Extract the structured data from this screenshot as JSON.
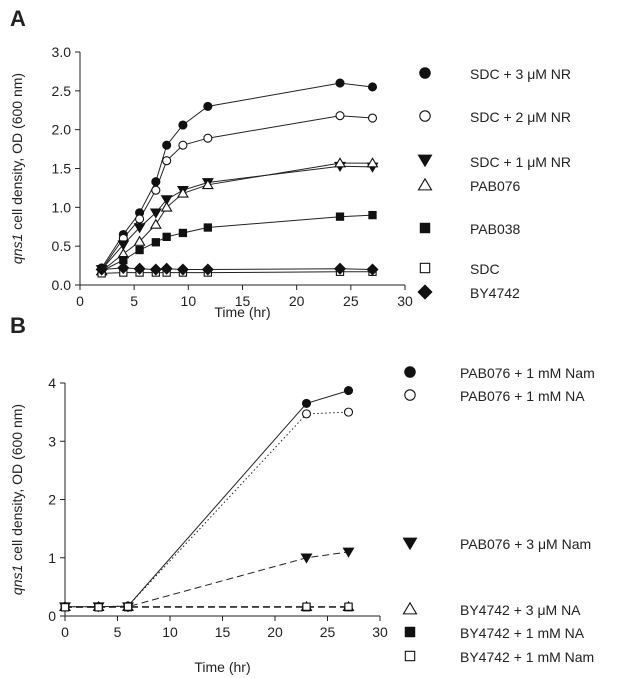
{
  "chart_data": [
    {
      "panel": "A",
      "type": "line",
      "xlabel": "Time (hr)",
      "ylabel_italic": "qns1",
      "ylabel_rest": " cell density, OD (600 nm)",
      "xlim": [
        0,
        30
      ],
      "ylim": [
        0,
        3.0
      ],
      "xticks": [
        0,
        5,
        10,
        15,
        20,
        25,
        30
      ],
      "yticks": [
        0.0,
        0.5,
        1.0,
        1.5,
        2.0,
        2.5,
        3.0
      ],
      "yticklabels": [
        "0.0",
        "0.5",
        "1.0",
        "1.5",
        "2.0",
        "2.5",
        "3.0"
      ],
      "grid": false,
      "legend_placement": "right",
      "series": [
        {
          "name": "SDC + 3 μM NR",
          "marker": "circle",
          "fill": "#111111",
          "line": "solid",
          "x": [
            2,
            4,
            5.5,
            7,
            8,
            9.5,
            11.8,
            24,
            27
          ],
          "y": [
            0.22,
            0.65,
            0.93,
            1.33,
            1.8,
            2.06,
            2.3,
            2.6,
            2.55
          ]
        },
        {
          "name": "SDC + 2 μM NR",
          "marker": "circle",
          "fill": "#ffffff",
          "line": "solid",
          "x": [
            2,
            4,
            5.5,
            7,
            8,
            9.5,
            11.8,
            24,
            27
          ],
          "y": [
            0.2,
            0.6,
            0.85,
            1.22,
            1.6,
            1.8,
            1.89,
            2.18,
            2.15
          ]
        },
        {
          "name": "SDC + 1 μM NR",
          "marker": "triangle-down",
          "fill": "#111111",
          "line": "solid",
          "x": [
            2,
            4,
            5.5,
            7,
            8,
            9.5,
            11.8,
            24,
            27
          ],
          "y": [
            0.2,
            0.52,
            0.74,
            0.93,
            1.1,
            1.22,
            1.32,
            1.53,
            1.52
          ]
        },
        {
          "name": "PAB076",
          "marker": "triangle-up",
          "fill": "#ffffff",
          "line": "solid",
          "x": [
            2,
            4,
            5.5,
            7,
            8,
            9.5,
            11.8,
            24,
            27
          ],
          "y": [
            0.18,
            0.4,
            0.56,
            0.78,
            1.0,
            1.18,
            1.29,
            1.57,
            1.57
          ]
        },
        {
          "name": "PAB038",
          "marker": "square",
          "fill": "#111111",
          "line": "solid",
          "x": [
            2,
            4,
            5.5,
            7,
            8,
            9.5,
            11.8,
            24,
            27
          ],
          "y": [
            0.18,
            0.32,
            0.45,
            0.55,
            0.62,
            0.67,
            0.74,
            0.88,
            0.9
          ]
        },
        {
          "name": "SDC",
          "marker": "square",
          "fill": "#ffffff",
          "line": "solid",
          "x": [
            2,
            4,
            5.5,
            7,
            8,
            9.5,
            11.8,
            24,
            27
          ],
          "y": [
            0.15,
            0.16,
            0.16,
            0.16,
            0.16,
            0.16,
            0.16,
            0.17,
            0.17
          ]
        },
        {
          "name": "BY4742",
          "marker": "diamond",
          "fill": "#111111",
          "line": "solid",
          "x": [
            2,
            4,
            5.5,
            7,
            8,
            9.5,
            11.8,
            24,
            27
          ],
          "y": [
            0.2,
            0.22,
            0.21,
            0.2,
            0.21,
            0.2,
            0.2,
            0.21,
            0.2
          ]
        }
      ]
    },
    {
      "panel": "B",
      "type": "line",
      "xlabel": "Time (hr)",
      "ylabel_italic": "qns1",
      "ylabel_rest": " cell density, OD (600 nm)",
      "xlim": [
        0,
        30
      ],
      "ylim": [
        0,
        4
      ],
      "xticks": [
        0,
        5,
        10,
        15,
        20,
        25,
        30
      ],
      "yticks": [
        0,
        1,
        2,
        3,
        4
      ],
      "yticklabels": [
        "0",
        "1",
        "2",
        "3",
        "4"
      ],
      "grid": false,
      "legend_placement": "right",
      "series": [
        {
          "name": "PAB076 + 1 mM Nam",
          "marker": "circle",
          "fill": "#111111",
          "line": "solid",
          "x": [
            0,
            3.2,
            6,
            23,
            27
          ],
          "y": [
            0.16,
            0.16,
            0.17,
            3.65,
            3.87
          ]
        },
        {
          "name": "PAB076 + 1 mM NA",
          "marker": "circle",
          "fill": "#ffffff",
          "line": "dotted",
          "x": [
            0,
            3.2,
            6,
            23,
            27
          ],
          "y": [
            0.16,
            0.16,
            0.17,
            3.47,
            3.5
          ]
        },
        {
          "name": "PAB076 + 3 μM Nam",
          "marker": "triangle-down",
          "fill": "#111111",
          "line": "dashed",
          "x": [
            0,
            3.2,
            6,
            23,
            27
          ],
          "y": [
            0.16,
            0.16,
            0.16,
            1.0,
            1.1
          ]
        },
        {
          "name": "BY4742 + 3 μM NA",
          "marker": "triangle-up",
          "fill": "#ffffff",
          "line": "dashed",
          "x": [
            0,
            3.2,
            6,
            23,
            27
          ],
          "y": [
            0.16,
            0.16,
            0.16,
            0.16,
            0.16
          ]
        },
        {
          "name": "BY4742 + 1 mM NA",
          "marker": "square",
          "fill": "#111111",
          "line": "dashed",
          "x": [
            0,
            3.2,
            6,
            23,
            27
          ],
          "y": [
            0.15,
            0.15,
            0.15,
            0.15,
            0.15
          ]
        },
        {
          "name": "BY4742 + 1 mM Nam",
          "marker": "square",
          "fill": "#ffffff",
          "line": "dashed",
          "x": [
            0,
            3.2,
            6,
            23,
            27
          ],
          "y": [
            0.15,
            0.15,
            0.16,
            0.16,
            0.16
          ]
        }
      ]
    }
  ]
}
